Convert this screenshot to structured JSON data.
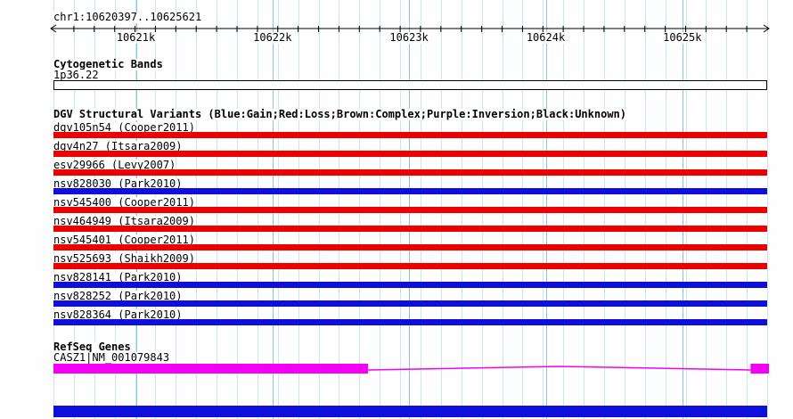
{
  "header": {
    "region_label": "chr1:10620397..10625621"
  },
  "colors": {
    "background": "#fdfefd",
    "loss": "#ee0000",
    "gain": "#0f0fdd",
    "gene": "#f400f4",
    "grid_minor": "#c3ebef",
    "grid_major": "#8cc4e2",
    "band_fill": "#ffffff",
    "scrollbar": "#0f0fdd"
  },
  "cytobands": {
    "title": "Cytogenetic Bands",
    "band_label": "1p36.22"
  },
  "dgv": {
    "title": "DGV Structural Variants (Blue:Gain;Red:Loss;Brown:Complex;Purple:Inversion;Black:Unknown)",
    "color_legend": {
      "Gain": "Blue",
      "Loss": "Red",
      "Complex": "Brown",
      "Inversion": "Purple",
      "Unknown": "Black"
    },
    "tracks": [
      {
        "label": "dgv105n54 (Cooper2011)",
        "variant_type": "loss"
      },
      {
        "label": "dgv4n27 (Itsara2009)",
        "variant_type": "loss"
      },
      {
        "label": "esv29966 (Levy2007)",
        "variant_type": "loss"
      },
      {
        "label": "nsv828030 (Park2010)",
        "variant_type": "gain"
      },
      {
        "label": "nsv545400 (Cooper2011)",
        "variant_type": "loss"
      },
      {
        "label": "nsv464949 (Itsara2009)",
        "variant_type": "loss"
      },
      {
        "label": "nsv545401 (Cooper2011)",
        "variant_type": "loss"
      },
      {
        "label": "nsv525693 (Shaikh2009)",
        "variant_type": "loss"
      },
      {
        "label": "nsv828141 (Park2010)",
        "variant_type": "gain"
      },
      {
        "label": "nsv828252 (Park2010)",
        "variant_type": "gain"
      },
      {
        "label": "nsv828364 (Park2010)",
        "variant_type": "gain"
      }
    ]
  },
  "refseq": {
    "title": "RefSeq Genes",
    "transcript_label": "CASZ1|NM_001079843"
  },
  "chart_data": {
    "type": "table",
    "title": "Genome browser track view",
    "region": {
      "chrom": "chr1",
      "start": 10620397,
      "end": 10625621
    },
    "x_axis": {
      "tick_labels": [
        "10621k",
        "10622k",
        "10623k",
        "10624k",
        "10625k"
      ],
      "tick_values": [
        10621000,
        10622000,
        10623000,
        10624000,
        10625000
      ],
      "range_bp": [
        10620397,
        10625621
      ],
      "grid": true
    },
    "sections": [
      {
        "section": "Cytogenetic Bands",
        "items": [
          {
            "name": "1p36.22",
            "glyph": "white band rectangle spanning full visible region"
          }
        ]
      },
      {
        "section": "DGV Structural Variants",
        "items": [
          {
            "name": "dgv105n54",
            "study": "Cooper2011",
            "variant_type": "loss",
            "color": "red",
            "spans_full_view": true
          },
          {
            "name": "dgv4n27",
            "study": "Itsara2009",
            "variant_type": "loss",
            "color": "red",
            "spans_full_view": true
          },
          {
            "name": "esv29966",
            "study": "Levy2007",
            "variant_type": "loss",
            "color": "red",
            "spans_full_view": true
          },
          {
            "name": "nsv828030",
            "study": "Park2010",
            "variant_type": "gain",
            "color": "blue",
            "spans_full_view": true
          },
          {
            "name": "nsv545400",
            "study": "Cooper2011",
            "variant_type": "loss",
            "color": "red",
            "spans_full_view": true
          },
          {
            "name": "nsv464949",
            "study": "Itsara2009",
            "variant_type": "loss",
            "color": "red",
            "spans_full_view": true
          },
          {
            "name": "nsv545401",
            "study": "Cooper2011",
            "variant_type": "loss",
            "color": "red",
            "spans_full_view": true
          },
          {
            "name": "nsv525693",
            "study": "Shaikh2009",
            "variant_type": "loss",
            "color": "red",
            "spans_full_view": true
          },
          {
            "name": "nsv828141",
            "study": "Park2010",
            "variant_type": "gain",
            "color": "blue",
            "spans_full_view": true
          },
          {
            "name": "nsv828252",
            "study": "Park2010",
            "variant_type": "gain",
            "color": "blue",
            "spans_full_view": true
          },
          {
            "name": "nsv828364",
            "study": "Park2010",
            "variant_type": "gain",
            "color": "blue",
            "spans_full_view": true
          }
        ]
      },
      {
        "section": "RefSeq Genes",
        "items": [
          {
            "name": "CASZ1|NM_001079843",
            "color": "magenta",
            "approx_thick_exon_left_end_bp": 10622700,
            "approx_right_exon_start_bp": 10625500,
            "glyph": "thick exon block, thin intron line with shallow peak, thick exon block at right edge"
          }
        ]
      }
    ]
  }
}
